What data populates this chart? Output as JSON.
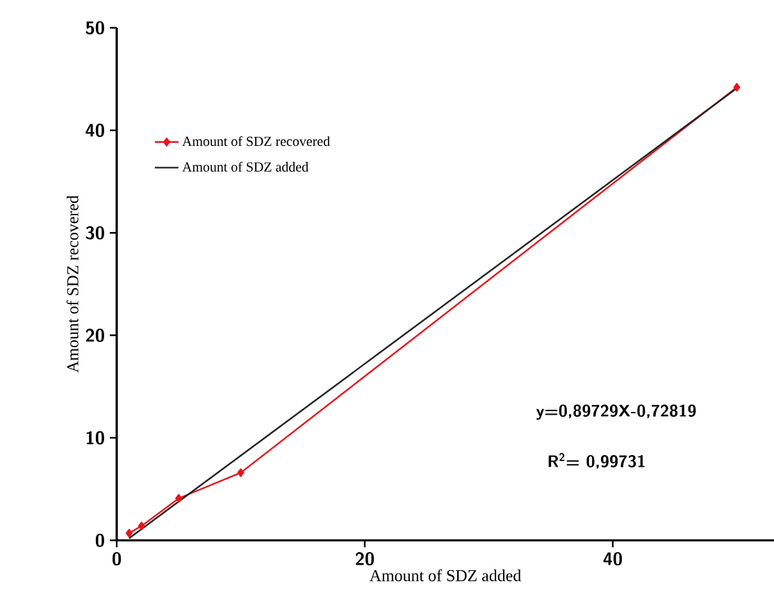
{
  "chart_data": {
    "type": "line",
    "xlabel": "Amount of SDZ added",
    "ylabel": "Amount of SDZ recovered",
    "series": [
      {
        "name": "Amount of SDZ recovered",
        "color": "#e8141c",
        "marker": "diamond",
        "x": [
          1,
          2,
          5,
          10,
          50
        ],
        "values": [
          0.7,
          1.4,
          4.1,
          6.6,
          44.2
        ]
      },
      {
        "name": "Amount of SDZ added",
        "color": "#222222",
        "marker": "none",
        "x": [
          1,
          50
        ],
        "values": [
          0.2,
          44.1
        ]
      }
    ],
    "xlim": [
      0,
      53
    ],
    "ylim": [
      0,
      50
    ],
    "xticks": [
      0,
      20,
      40
    ],
    "yticks": [
      0,
      10,
      20,
      30,
      40,
      50
    ],
    "legend": "top left",
    "annotations": [
      "y=0,89729X-0,72819",
      "R$^{2}$= 0,99731"
    ]
  }
}
